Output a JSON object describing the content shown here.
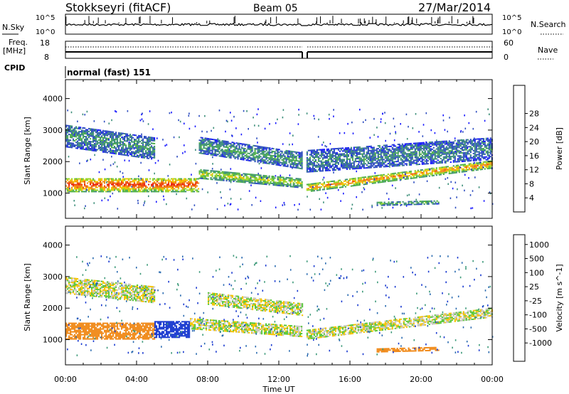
{
  "header": {
    "station": "Stokkseyri (fitACF)",
    "beam": "Beam 05",
    "date": "27/Mar/2014"
  },
  "status_panels": {
    "nsky": {
      "label": "N.Sky",
      "left_ticks": [
        "10^5",
        "10^0"
      ],
      "right_ticks": [
        "10^5",
        "10^0"
      ],
      "right_label": "N.Search"
    },
    "freq": {
      "label_line1": "Freq.",
      "label_line2": "[MHz]",
      "left_ticks": [
        "18",
        "8"
      ],
      "right_ticks": [
        "60",
        "0"
      ],
      "right_label": "Nave"
    },
    "cpid": {
      "label": "CPID",
      "value": "normal (fast) 151"
    }
  },
  "x_axis": {
    "label": "Time UT",
    "ticks": [
      "00:00",
      "04:00",
      "08:00",
      "12:00",
      "16:00",
      "20:00",
      "00:00"
    ]
  },
  "chart_data": [
    {
      "type": "heatmap",
      "panel": "power",
      "ylabel": "Slant Range [km]",
      "ylim": [
        200,
        4600
      ],
      "yticks": [
        1000,
        2000,
        3000,
        4000
      ],
      "xlim_hours": [
        0,
        24
      ],
      "data_gap_hours": [
        13.3,
        13.55
      ],
      "colorbar": {
        "label": "Power [dB]",
        "ticks": [
          "4",
          "8",
          "12",
          "16",
          "20",
          "24",
          "28"
        ],
        "colors": [
          "#1a1aff",
          "#2f4ec0",
          "#3e8f7a",
          "#4fb04a",
          "#9bd629",
          "#f5c300",
          "#f08a1a",
          "#ef4a12",
          "#e81e12"
        ]
      },
      "bands": [
        {
          "name": "main echo",
          "t0": 0.0,
          "t1": 7.5,
          "center_start_km": 1250,
          "center_end_km": 1250,
          "width_km": 450,
          "level_db": 26
        },
        {
          "name": "main echo",
          "t0": 7.5,
          "t1": 13.3,
          "center_start_km": 1600,
          "center_end_km": 1300,
          "width_km": 300,
          "level_db": 16
        },
        {
          "name": "main echo",
          "t0": 13.55,
          "t1": 24.0,
          "center_start_km": 1150,
          "center_end_km": 1900,
          "width_km": 250,
          "level_db": 22
        },
        {
          "name": "upper",
          "t0": 0.0,
          "t1": 5.0,
          "center_start_km": 2800,
          "center_end_km": 2400,
          "width_km": 700,
          "level_db": 8
        },
        {
          "name": "upper",
          "t0": 7.5,
          "t1": 13.3,
          "center_start_km": 2500,
          "center_end_km": 2000,
          "width_km": 500,
          "level_db": 9
        },
        {
          "name": "upper",
          "t0": 13.55,
          "t1": 24.0,
          "center_start_km": 2000,
          "center_end_km": 2400,
          "width_km": 700,
          "level_db": 7
        },
        {
          "name": "lower",
          "t0": 17.5,
          "t1": 21.0,
          "center_start_km": 650,
          "center_end_km": 700,
          "width_km": 120,
          "level_db": 12
        }
      ]
    },
    {
      "type": "heatmap",
      "panel": "velocity",
      "ylabel": "Slant Range [km]",
      "ylim": [
        200,
        4600
      ],
      "yticks": [
        1000,
        2000,
        3000,
        4000
      ],
      "xlim_hours": [
        0,
        24
      ],
      "data_gap_hours": [
        13.3,
        13.55
      ],
      "colorbar": {
        "label": "Velocity [m s^-1]",
        "ticks": [
          "1000",
          "500",
          "100",
          "25",
          "-25",
          "-100",
          "-500",
          "-1000"
        ],
        "colors": [
          "#1a3ad0",
          "#2b6bb0",
          "#3e9a7a",
          "#58c73a",
          "#c8c8c0",
          "#f5c300",
          "#f08a1a",
          "#ef4a12",
          "#e81e12"
        ]
      },
      "bands": [
        {
          "name": "main echo",
          "t0": 0.0,
          "t1": 5.0,
          "center_start_km": 1250,
          "center_end_km": 1250,
          "width_km": 500,
          "level_ms": -300
        },
        {
          "name": "main echo",
          "t0": 5.0,
          "t1": 7.0,
          "center_start_km": 1300,
          "center_end_km": 1300,
          "width_km": 500,
          "level_ms": 700
        },
        {
          "name": "main echo",
          "t0": 7.0,
          "t1": 13.3,
          "center_start_km": 1500,
          "center_end_km": 1250,
          "width_km": 350,
          "level_ms": 0
        },
        {
          "name": "main echo",
          "t0": 13.55,
          "t1": 24.0,
          "center_start_km": 1150,
          "center_end_km": 1850,
          "width_km": 300,
          "level_ms": 0
        },
        {
          "name": "upper",
          "t0": 0.0,
          "t1": 5.0,
          "center_start_km": 2700,
          "center_end_km": 2400,
          "width_km": 500,
          "level_ms": 0
        },
        {
          "name": "upper",
          "t0": 8.0,
          "t1": 13.3,
          "center_start_km": 2300,
          "center_end_km": 1950,
          "width_km": 400,
          "level_ms": 0
        },
        {
          "name": "lower",
          "t0": 17.5,
          "t1": 21.0,
          "center_start_km": 650,
          "center_end_km": 700,
          "width_km": 120,
          "level_ms": -300
        }
      ]
    }
  ]
}
